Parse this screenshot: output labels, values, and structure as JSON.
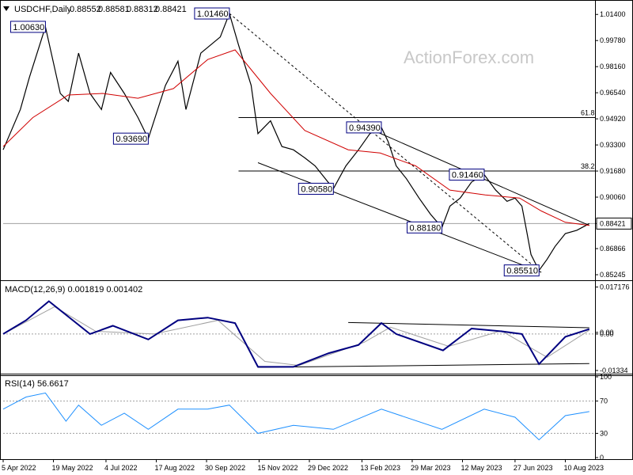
{
  "chart_data": {
    "type": "line",
    "symbol_header": "USDCHF,Daily",
    "ohlc_header": [
      "0.88552",
      "0.88581",
      "0.88312",
      "0.88421"
    ],
    "watermark": "ActionForex.com",
    "price_panel": {
      "ylim": [
        0.85,
        1.021
      ],
      "y_ticks": [
        "1.01400",
        "0.99780",
        "0.98160",
        "0.96540",
        "0.94920",
        "0.93300",
        "0.91680",
        "0.90060",
        "0.88421",
        "0.86866",
        "0.85245"
      ],
      "y_tick_values": [
        1.014,
        0.9978,
        0.9816,
        0.9654,
        0.9492,
        0.933,
        0.9168,
        0.9006,
        0.88421,
        0.86866,
        0.85245
      ],
      "current_price": 0.88421,
      "current_price_label": "0.88421",
      "close_path": [
        {
          "x": "2022-04-05",
          "y": 0.93
        },
        {
          "x": "2022-04-20",
          "y": 0.955
        },
        {
          "x": "2022-04-28",
          "y": 0.975
        },
        {
          "x": "2022-05-12",
          "y": 1.0063
        },
        {
          "x": "2022-05-25",
          "y": 0.965
        },
        {
          "x": "2022-06-01",
          "y": 0.96
        },
        {
          "x": "2022-06-10",
          "y": 0.99
        },
        {
          "x": "2022-06-20",
          "y": 0.965
        },
        {
          "x": "2022-06-30",
          "y": 0.955
        },
        {
          "x": "2022-07-08",
          "y": 0.978
        },
        {
          "x": "2022-07-20",
          "y": 0.965
        },
        {
          "x": "2022-08-01",
          "y": 0.95
        },
        {
          "x": "2022-08-10",
          "y": 0.9369
        },
        {
          "x": "2022-08-25",
          "y": 0.97
        },
        {
          "x": "2022-09-05",
          "y": 0.985
        },
        {
          "x": "2022-09-12",
          "y": 0.955
        },
        {
          "x": "2022-09-25",
          "y": 0.99
        },
        {
          "x": "2022-10-12",
          "y": 1.0
        },
        {
          "x": "2022-10-20",
          "y": 1.0146
        },
        {
          "x": "2022-10-28",
          "y": 0.995
        },
        {
          "x": "2022-11-08",
          "y": 0.97
        },
        {
          "x": "2022-11-14",
          "y": 0.94
        },
        {
          "x": "2022-11-25",
          "y": 0.948
        },
        {
          "x": "2022-12-05",
          "y": 0.932
        },
        {
          "x": "2022-12-15",
          "y": 0.93
        },
        {
          "x": "2022-12-25",
          "y": 0.925
        },
        {
          "x": "2023-01-03",
          "y": 0.92
        },
        {
          "x": "2023-01-19",
          "y": 0.9058
        },
        {
          "x": "2023-01-30",
          "y": 0.92
        },
        {
          "x": "2023-02-10",
          "y": 0.93
        },
        {
          "x": "2023-02-20",
          "y": 0.94
        },
        {
          "x": "2023-03-02",
          "y": 0.9439
        },
        {
          "x": "2023-03-08",
          "y": 0.935
        },
        {
          "x": "2023-03-15",
          "y": 0.92
        },
        {
          "x": "2023-03-24",
          "y": 0.912
        },
        {
          "x": "2023-04-04",
          "y": 0.9
        },
        {
          "x": "2023-04-14",
          "y": 0.89
        },
        {
          "x": "2023-04-24",
          "y": 0.8818
        },
        {
          "x": "2023-05-01",
          "y": 0.895
        },
        {
          "x": "2023-05-10",
          "y": 0.9
        },
        {
          "x": "2023-05-20",
          "y": 0.91
        },
        {
          "x": "2023-05-31",
          "y": 0.9146
        },
        {
          "x": "2023-06-10",
          "y": 0.905
        },
        {
          "x": "2023-06-20",
          "y": 0.898
        },
        {
          "x": "2023-06-27",
          "y": 0.9
        },
        {
          "x": "2023-07-03",
          "y": 0.895
        },
        {
          "x": "2023-07-07",
          "y": 0.88
        },
        {
          "x": "2023-07-11",
          "y": 0.865
        },
        {
          "x": "2023-07-18",
          "y": 0.8551
        },
        {
          "x": "2023-07-25",
          "y": 0.862
        },
        {
          "x": "2023-08-01",
          "y": 0.87
        },
        {
          "x": "2023-08-10",
          "y": 0.878
        },
        {
          "x": "2023-08-20",
          "y": 0.88
        },
        {
          "x": "2023-08-28",
          "y": 0.883
        },
        {
          "x": "2023-08-31",
          "y": 0.8842
        }
      ],
      "moving_average": [
        {
          "x": "2022-04-05",
          "y": 0.932
        },
        {
          "x": "2022-05-01",
          "y": 0.95
        },
        {
          "x": "2022-06-01",
          "y": 0.964
        },
        {
          "x": "2022-07-01",
          "y": 0.965
        },
        {
          "x": "2022-08-01",
          "y": 0.962
        },
        {
          "x": "2022-09-01",
          "y": 0.968
        },
        {
          "x": "2022-10-01",
          "y": 0.986
        },
        {
          "x": "2022-10-25",
          "y": 0.992
        },
        {
          "x": "2022-11-25",
          "y": 0.965
        },
        {
          "x": "2022-12-25",
          "y": 0.942
        },
        {
          "x": "2023-02-01",
          "y": 0.93
        },
        {
          "x": "2023-03-01",
          "y": 0.928
        },
        {
          "x": "2023-04-01",
          "y": 0.92
        },
        {
          "x": "2023-05-01",
          "y": 0.905
        },
        {
          "x": "2023-06-01",
          "y": 0.902
        },
        {
          "x": "2023-07-01",
          "y": 0.9
        },
        {
          "x": "2023-07-20",
          "y": 0.892
        },
        {
          "x": "2023-08-10",
          "y": 0.885
        },
        {
          "x": "2023-08-31",
          "y": 0.883
        }
      ],
      "fib_levels": [
        {
          "name": "61.8",
          "value": 0.95,
          "label": "61.8"
        },
        {
          "name": "38.2",
          "value": 0.9168,
          "label": "38.2"
        }
      ],
      "channel": {
        "upper": [
          {
            "x": "2023-02-20",
            "y": 0.943
          },
          {
            "x": "2023-08-31",
            "y": 0.883
          }
        ],
        "lower": [
          {
            "x": "2022-11-14",
            "y": 0.922
          },
          {
            "x": "2023-07-20",
            "y": 0.854
          }
        ]
      },
      "dashed_trendline": [
        {
          "x": "2022-10-20",
          "y": 1.0146
        },
        {
          "x": "2023-07-18",
          "y": 0.8551
        }
      ],
      "callouts": [
        {
          "text": "1.00630",
          "x": "2022-05-12",
          "y": 1.0063,
          "anchor": "left"
        },
        {
          "text": "0.93690",
          "x": "2022-08-10",
          "y": 0.9369,
          "anchor": "left"
        },
        {
          "text": "1.01460",
          "x": "2022-10-20",
          "y": 1.0146,
          "anchor": "left"
        },
        {
          "text": "0.90580",
          "x": "2023-01-19",
          "y": 0.9058,
          "anchor": "left"
        },
        {
          "text": "0.94390",
          "x": "2023-03-02",
          "y": 0.9439,
          "anchor": "left"
        },
        {
          "text": "0.88180",
          "x": "2023-04-24",
          "y": 0.8818,
          "anchor": "left"
        },
        {
          "text": "0.91460",
          "x": "2023-05-31",
          "y": 0.9146,
          "anchor": "left"
        },
        {
          "text": "0.85510",
          "x": "2023-07-18",
          "y": 0.8551,
          "anchor": "left"
        }
      ]
    },
    "macd_panel": {
      "header": "MACD(12,26,9) 0.001819 0.001402",
      "ylim": [
        -0.0145,
        0.0185
      ],
      "y_ticks": [
        "0.017176",
        "0.00",
        "0.00",
        "-0.01334"
      ],
      "y_tick_values": [
        0.017176,
        0.0006,
        0.0,
        -0.01334
      ],
      "macd": [
        {
          "x": "2022-04-05",
          "y": 0.0
        },
        {
          "x": "2022-04-25",
          "y": 0.005
        },
        {
          "x": "2022-05-15",
          "y": 0.012
        },
        {
          "x": "2022-06-05",
          "y": 0.005
        },
        {
          "x": "2022-06-20",
          "y": 0.0
        },
        {
          "x": "2022-07-10",
          "y": 0.003
        },
        {
          "x": "2022-08-10",
          "y": -0.002
        },
        {
          "x": "2022-09-05",
          "y": 0.005
        },
        {
          "x": "2022-10-01",
          "y": 0.006
        },
        {
          "x": "2022-10-25",
          "y": 0.004
        },
        {
          "x": "2022-11-14",
          "y": -0.012
        },
        {
          "x": "2022-12-15",
          "y": -0.012
        },
        {
          "x": "2023-01-15",
          "y": -0.007
        },
        {
          "x": "2023-02-10",
          "y": -0.004
        },
        {
          "x": "2023-03-02",
          "y": 0.004
        },
        {
          "x": "2023-03-15",
          "y": 0.0
        },
        {
          "x": "2023-04-25",
          "y": -0.006
        },
        {
          "x": "2023-05-20",
          "y": 0.002
        },
        {
          "x": "2023-06-15",
          "y": 0.001
        },
        {
          "x": "2023-07-03",
          "y": 0.0
        },
        {
          "x": "2023-07-18",
          "y": -0.011
        },
        {
          "x": "2023-08-10",
          "y": -0.001
        },
        {
          "x": "2023-08-31",
          "y": 0.0018
        }
      ],
      "signal": [
        {
          "x": "2022-04-05",
          "y": 0.0
        },
        {
          "x": "2022-05-20",
          "y": 0.01
        },
        {
          "x": "2022-06-25",
          "y": 0.001
        },
        {
          "x": "2022-08-15",
          "y": 0.0
        },
        {
          "x": "2022-10-10",
          "y": 0.005
        },
        {
          "x": "2022-11-20",
          "y": -0.01
        },
        {
          "x": "2022-12-20",
          "y": -0.0115
        },
        {
          "x": "2023-02-15",
          "y": -0.003
        },
        {
          "x": "2023-03-10",
          "y": 0.0025
        },
        {
          "x": "2023-04-30",
          "y": -0.0045
        },
        {
          "x": "2023-06-15",
          "y": 0.0012
        },
        {
          "x": "2023-07-25",
          "y": -0.0085
        },
        {
          "x": "2023-08-31",
          "y": 0.0014
        }
      ],
      "trendlines": [
        [
          {
            "x": "2023-02-01",
            "y": 0.0042
          },
          {
            "x": "2023-08-31",
            "y": 0.0023
          }
        ],
        [
          {
            "x": "2022-11-14",
            "y": -0.0122
          },
          {
            "x": "2023-08-31",
            "y": -0.0108
          }
        ]
      ]
    },
    "rsi_panel": {
      "header": "RSI(14) 56.6617",
      "ylim": [
        0,
        100
      ],
      "y_ticks": [
        "100",
        "70",
        "30",
        "0"
      ],
      "y_tick_values": [
        100,
        70,
        30,
        0
      ],
      "rsi": [
        {
          "x": "2022-04-05",
          "y": 60
        },
        {
          "x": "2022-04-25",
          "y": 75
        },
        {
          "x": "2022-05-12",
          "y": 80
        },
        {
          "x": "2022-05-30",
          "y": 45
        },
        {
          "x": "2022-06-10",
          "y": 65
        },
        {
          "x": "2022-06-30",
          "y": 40
        },
        {
          "x": "2022-07-20",
          "y": 55
        },
        {
          "x": "2022-08-10",
          "y": 35
        },
        {
          "x": "2022-09-05",
          "y": 60
        },
        {
          "x": "2022-10-01",
          "y": 60
        },
        {
          "x": "2022-10-20",
          "y": 65
        },
        {
          "x": "2022-11-14",
          "y": 30
        },
        {
          "x": "2022-12-15",
          "y": 40
        },
        {
          "x": "2023-01-19",
          "y": 35
        },
        {
          "x": "2023-03-02",
          "y": 60
        },
        {
          "x": "2023-04-24",
          "y": 35
        },
        {
          "x": "2023-05-31",
          "y": 60
        },
        {
          "x": "2023-06-27",
          "y": 50
        },
        {
          "x": "2023-07-18",
          "y": 22
        },
        {
          "x": "2023-08-10",
          "y": 52
        },
        {
          "x": "2023-08-31",
          "y": 57
        }
      ]
    },
    "x_ticks": [
      {
        "label": "5 Apr 2022",
        "x": "2022-04-05"
      },
      {
        "label": "19 May 2022",
        "x": "2022-05-19"
      },
      {
        "label": "4 Jul 2022",
        "x": "2022-07-04"
      },
      {
        "label": "17 Aug 2022",
        "x": "2022-08-17"
      },
      {
        "label": "30 Sep 2022",
        "x": "2022-09-30"
      },
      {
        "label": "15 Nov 2022",
        "x": "2022-11-15"
      },
      {
        "label": "29 Dec 2022",
        "x": "2022-12-29"
      },
      {
        "label": "13 Feb 2023",
        "x": "2023-02-13"
      },
      {
        "label": "29 Mar 2023",
        "x": "2023-03-29"
      },
      {
        "label": "12 May 2023",
        "x": "2023-05-12"
      },
      {
        "label": "27 Jun 2023",
        "x": "2023-06-27"
      },
      {
        "label": "10 Aug 2023",
        "x": "2023-08-10"
      }
    ],
    "x_range": [
      "2022-04-05",
      "2023-09-05"
    ],
    "colors": {
      "price": "#000000",
      "moving_average": "#d00000",
      "macd": "#000080",
      "signal": "#a0a0a0",
      "rsi": "#1e90ff",
      "grid": "#a0a0a0",
      "callout_border": "#000080"
    }
  }
}
